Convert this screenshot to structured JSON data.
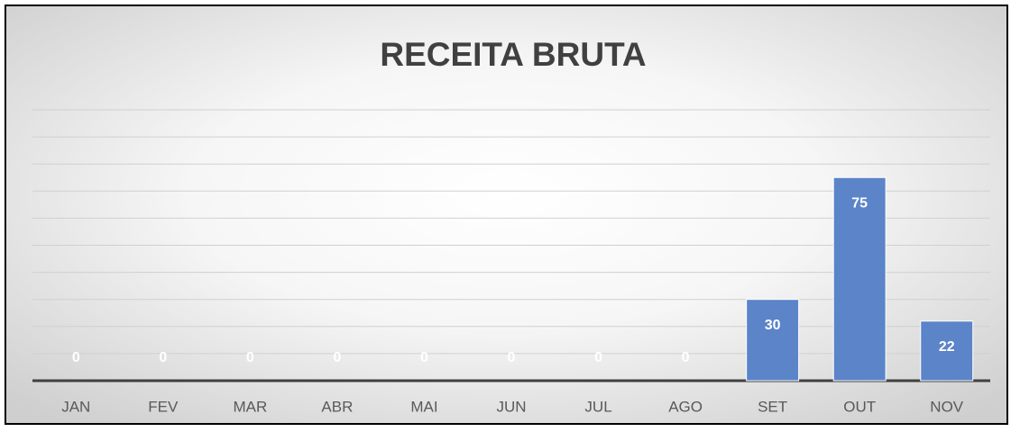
{
  "chart_data": {
    "type": "bar",
    "title": "RECEITA  BRUTA",
    "categories": [
      "JAN",
      "FEV",
      "MAR",
      "ABR",
      "MAI",
      "JUN",
      "JUL",
      "AGO",
      "SET",
      "OUT",
      "NOV"
    ],
    "values": [
      0,
      0,
      0,
      0,
      0,
      0,
      0,
      0,
      30,
      75,
      22
    ],
    "color": "#5b84c9",
    "ylim": [
      0,
      100
    ],
    "yticks": [
      0,
      10,
      20,
      30,
      40,
      50,
      60,
      70,
      80,
      90,
      100
    ],
    "grid": true
  }
}
